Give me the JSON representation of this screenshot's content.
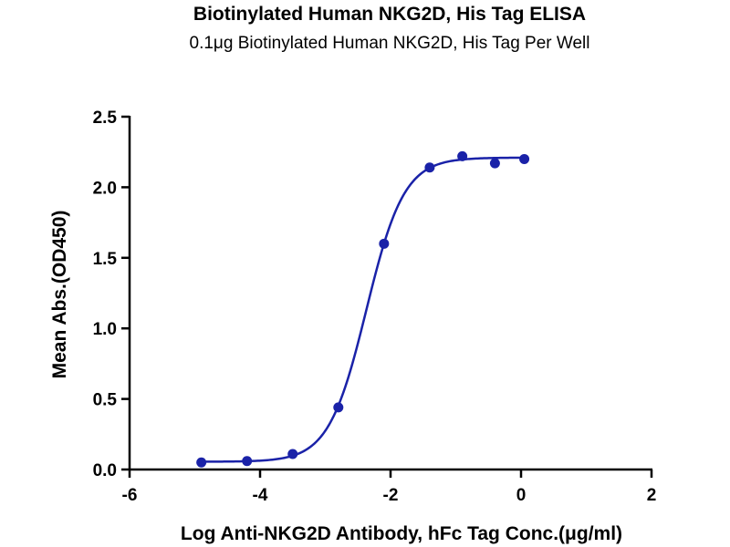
{
  "chart_data": {
    "type": "scatter",
    "title": "Biotinylated Human NKG2D, His Tag ELISA",
    "subtitle": "0.1μg Biotinylated Human NKG2D, His Tag Per Well",
    "xlabel": "Log Anti-NKG2D Antibody, hFc Tag Conc.(μg/ml)",
    "ylabel": "Mean Abs.(OD450)",
    "xlim": [
      -6,
      2
    ],
    "ylim": [
      0,
      2.5
    ],
    "xticks": [
      -6,
      -4,
      -2,
      0,
      2
    ],
    "yticks": [
      0.0,
      0.5,
      1.0,
      1.5,
      2.0,
      2.5
    ],
    "xtick_labels": [
      "-6",
      "-4",
      "-2",
      "0",
      "2"
    ],
    "ytick_labels": [
      "0.0",
      "0.5",
      "1.0",
      "1.5",
      "2.0",
      "2.5"
    ],
    "grid": false,
    "point_color": "#1a22a8",
    "curve_color": "#1a22a8",
    "series": [
      {
        "x": [
          -4.9,
          -4.2,
          -3.5,
          -2.8,
          -2.1,
          -1.4,
          -0.9,
          -0.4,
          0.05
        ],
        "y": [
          0.05,
          0.06,
          0.11,
          0.44,
          1.6,
          2.14,
          2.22,
          2.17,
          2.2
        ]
      }
    ],
    "fit": {
      "model": "4PL",
      "bottom": 0.055,
      "top": 2.21,
      "log_ec50": -2.37,
      "hill": 1.5,
      "x_range": [
        -4.9,
        0.05
      ]
    }
  }
}
